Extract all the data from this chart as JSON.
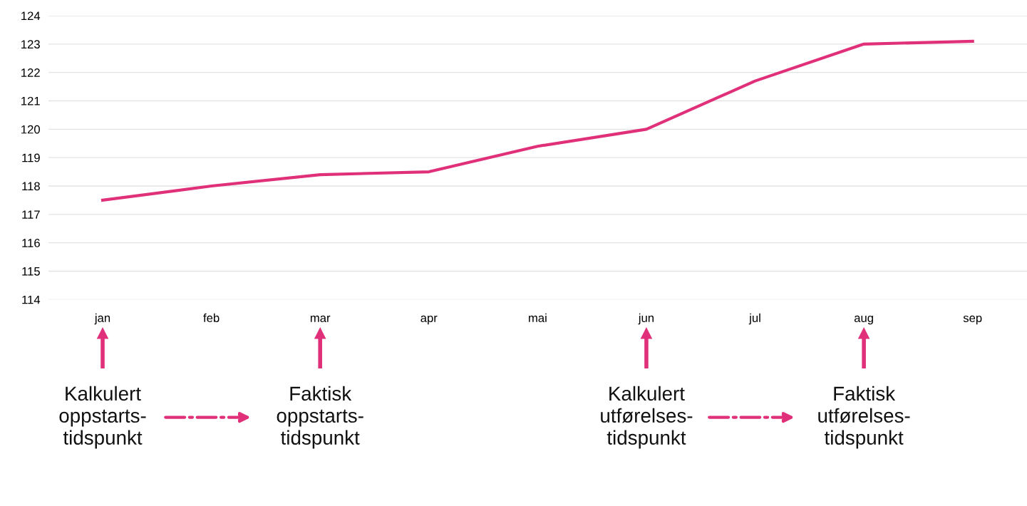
{
  "chart_data": {
    "type": "line",
    "categories": [
      "jan",
      "feb",
      "mar",
      "apr",
      "mai",
      "jun",
      "jul",
      "aug",
      "sep"
    ],
    "series": [
      {
        "color": "#e0307a",
        "values": [
          117.5,
          118.0,
          118.4,
          118.5,
          119.4,
          120.0,
          121.7,
          123.0,
          123.1
        ]
      }
    ],
    "ylim": [
      114,
      124
    ],
    "yticks": [
      114,
      115,
      116,
      117,
      118,
      119,
      120,
      121,
      122,
      123,
      124
    ],
    "grid": "y",
    "marker": "none",
    "line_style": "solid",
    "annotations": [
      "Kalkulert\noppstarts-\ntidspunkt",
      "Faktisk\noppstarts-\ntidspunkt",
      "Kalkulert\nutførelses-\ntidspunkt",
      "Faktisk\nutførelses-\ntidspunkt"
    ]
  }
}
